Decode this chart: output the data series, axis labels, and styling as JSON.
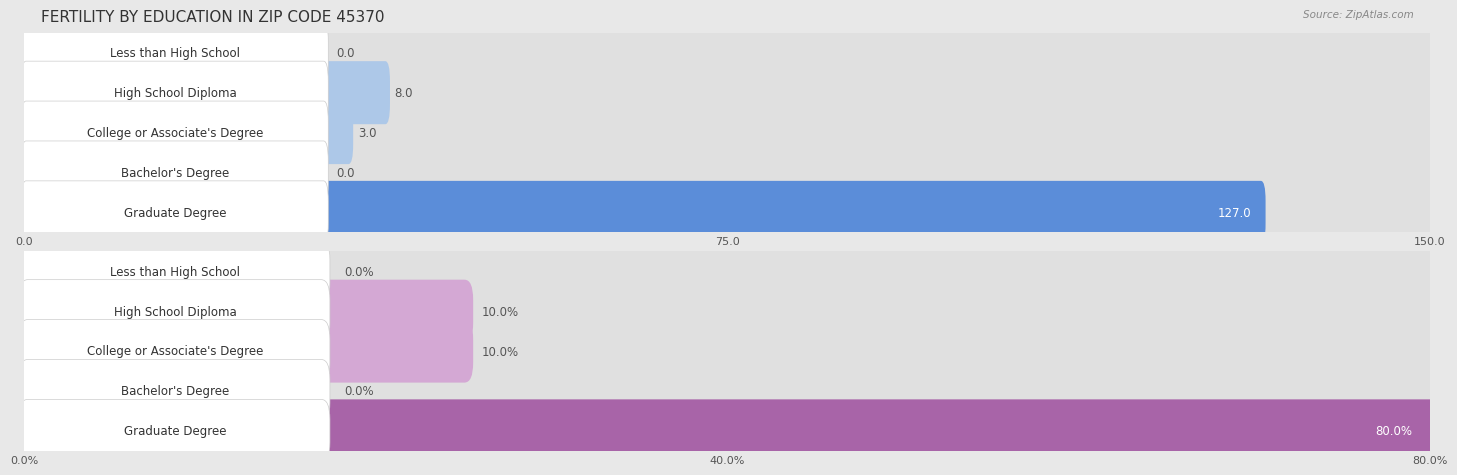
{
  "title": "FERTILITY BY EDUCATION IN ZIP CODE 45370",
  "source": "Source: ZipAtlas.com",
  "top_chart": {
    "categories": [
      "Less than High School",
      "High School Diploma",
      "College or Associate's Degree",
      "Bachelor's Degree",
      "Graduate Degree"
    ],
    "values": [
      0.0,
      8.0,
      3.0,
      0.0,
      127.0
    ],
    "value_labels": [
      "0.0",
      "8.0",
      "3.0",
      "0.0",
      "127.0"
    ],
    "xlim": [
      0,
      150
    ],
    "xticks": [
      0.0,
      75.0,
      150.0
    ],
    "xtick_labels": [
      "0.0",
      "75.0",
      "150.0"
    ],
    "bar_color_normal": "#adc8e8",
    "bar_color_highlight": "#5b8dd9",
    "highlight_index": 4,
    "value_color_normal": "#555555",
    "value_color_highlight": "#ffffff"
  },
  "bottom_chart": {
    "categories": [
      "Less than High School",
      "High School Diploma",
      "College or Associate's Degree",
      "Bachelor's Degree",
      "Graduate Degree"
    ],
    "values": [
      0.0,
      10.0,
      10.0,
      0.0,
      80.0
    ],
    "value_labels": [
      "0.0%",
      "10.0%",
      "10.0%",
      "0.0%",
      "80.0%"
    ],
    "xlim": [
      0,
      80
    ],
    "xticks": [
      0.0,
      40.0,
      80.0
    ],
    "xtick_labels": [
      "0.0%",
      "40.0%",
      "80.0%"
    ],
    "bar_color_normal": "#d4a8d4",
    "bar_color_highlight": "#a864a8",
    "highlight_index": 4,
    "value_color_normal": "#555555",
    "value_color_highlight": "#ffffff"
  },
  "bg_color": "#e8e8e8",
  "row_bg_color": "#ffffff",
  "row_alt_bg": "#f5f5f5",
  "label_box_color": "#ffffff",
  "label_text_color": "#333333",
  "title_color": "#333333",
  "source_color": "#888888",
  "title_fontsize": 11,
  "label_fontsize": 8.5,
  "value_fontsize": 8.5,
  "tick_fontsize": 8
}
